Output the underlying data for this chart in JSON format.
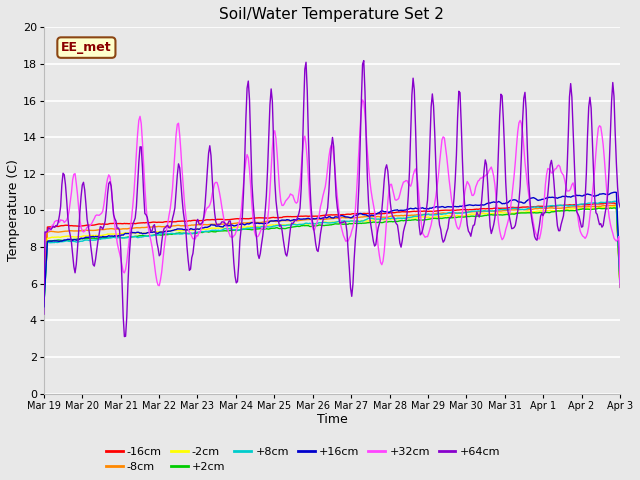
{
  "title": "Soil/Water Temperature Set 2",
  "xlabel": "Time",
  "ylabel": "Temperature (C)",
  "ylim": [
    0,
    20
  ],
  "yticks": [
    0,
    2,
    4,
    6,
    8,
    10,
    12,
    14,
    16,
    18,
    20
  ],
  "background_color": "#e8e8e8",
  "annotation_text": "EE_met",
  "annotation_bg": "#ffffcc",
  "annotation_border": "#8b4513",
  "series_colors": {
    "-16cm": "#ff0000",
    "-8cm": "#ff8800",
    "-2cm": "#ffff00",
    "+2cm": "#00cc00",
    "+8cm": "#00cccc",
    "+16cm": "#0000cc",
    "+32cm": "#ff44ff",
    "+64cm": "#8800cc"
  },
  "xtick_labels": [
    "Mar 19",
    "Mar 20",
    "Mar 21",
    "Mar 22",
    "Mar 23",
    "Mar 24",
    "Mar 25",
    "Mar 26",
    "Mar 27",
    "Mar 28",
    "Mar 29",
    "Mar 30",
    "Mar 31",
    "Apr 1",
    "Apr 2",
    "Apr 3"
  ],
  "labels_order": [
    "-16cm",
    "-8cm",
    "-2cm",
    "+2cm",
    "+8cm",
    "+16cm",
    "+32cm",
    "+64cm"
  ],
  "n_points": 480
}
